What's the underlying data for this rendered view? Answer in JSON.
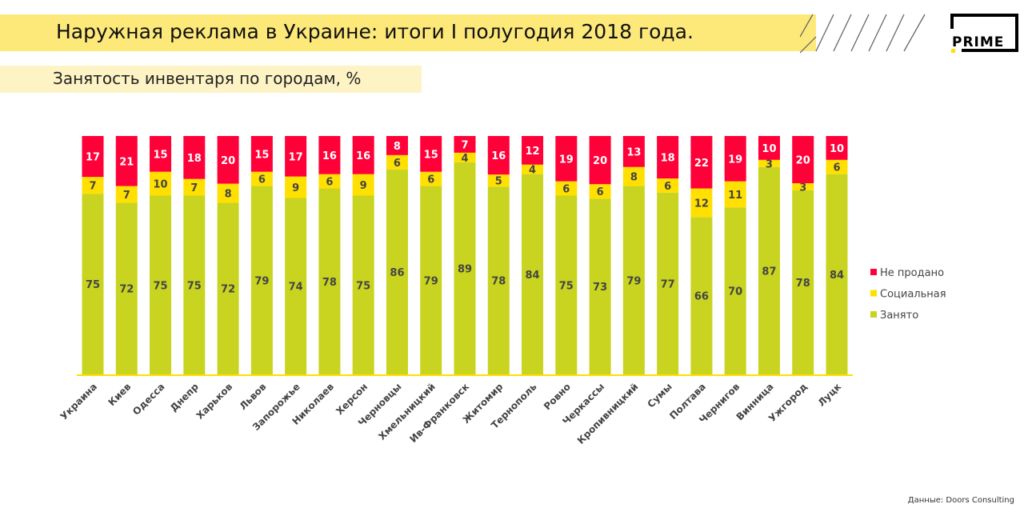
{
  "header": {
    "title": "Наружная реклама в Украине: итоги I полугодия 2018 года.",
    "subtitle": "Занятость инвентаря по городам, %",
    "logo_text": "PRIME"
  },
  "source": "Данные: Doors Consulting",
  "chart_data": {
    "type": "bar",
    "stacked": true,
    "title": "Занятость инвентаря по городам, %",
    "categories": [
      "Украина",
      "Киев",
      "Одесса",
      "Днепр",
      "Харьков",
      "Львов",
      "Запорожье",
      "Николаев",
      "Херсон",
      "Черновцы",
      "Хмельницкий",
      "Ив-Франковск",
      "Житомир",
      "Тернополь",
      "Ровно",
      "Черкассы",
      "Кропивницкий",
      "Сумы",
      "Полтава",
      "Чернигов",
      "Винница",
      "Ужгород",
      "Луцк"
    ],
    "series": [
      {
        "name": "Занято",
        "color": "#c8d41f",
        "values": [
          75,
          72,
          75,
          75,
          72,
          79,
          74,
          78,
          75,
          86,
          79,
          89,
          78,
          84,
          75,
          73,
          79,
          77,
          66,
          70,
          87,
          78,
          84
        ]
      },
      {
        "name": "Социальная",
        "color": "#ffe000",
        "values": [
          7,
          7,
          10,
          7,
          8,
          6,
          9,
          6,
          9,
          6,
          6,
          4,
          5,
          4,
          6,
          6,
          8,
          6,
          12,
          11,
          3,
          3,
          6
        ]
      },
      {
        "name": "Не продано",
        "color": "#ff0038",
        "values": [
          17,
          21,
          15,
          18,
          20,
          15,
          17,
          16,
          16,
          8,
          15,
          7,
          16,
          12,
          19,
          20,
          13,
          18,
          22,
          19,
          10,
          20,
          10
        ]
      }
    ],
    "legend_order": [
      "Не продано",
      "Социальная",
      "Занято"
    ],
    "legend": "right",
    "ylim": [
      0,
      100
    ],
    "grid": false
  }
}
